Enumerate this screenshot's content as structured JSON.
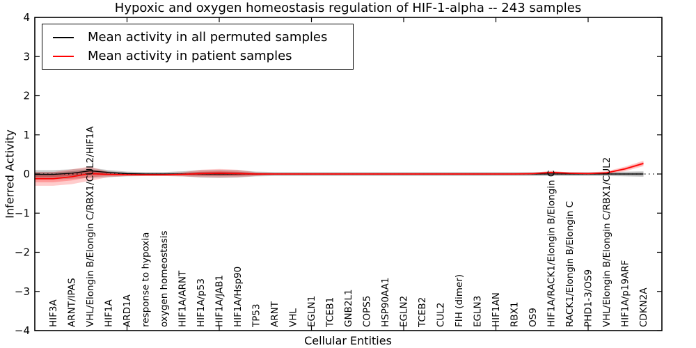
{
  "chart_data": {
    "type": "line",
    "title": "Hypoxic and oxygen homeostasis regulation of HIF-1-alpha -- 243 samples",
    "xlabel": "Cellular Entities",
    "ylabel": "Inferred Activity",
    "ylim": [
      -4,
      4
    ],
    "ytick_labels": [
      "−4",
      "−3",
      "−2",
      "−1",
      "0",
      "1",
      "2",
      "3",
      "4"
    ],
    "grid": false,
    "legend_position": "upper left",
    "background": "#ffffff",
    "zero_line": {
      "style": "dotted",
      "color": "#000000",
      "y": 0
    },
    "categories": [
      "HIF3A",
      "ARNT/IPAS",
      "VHL/Elongin B/Elongin C/RBX1/CUL2/HIF1A",
      "HIF1A",
      "ARD1A",
      "response to hypoxia",
      "oxygen homeostasis",
      "HIF1A/ARNT",
      "HIF1A/p53",
      "HIF1A/JAB1",
      "HIF1A/Hsp90",
      "TP53",
      "ARNT",
      "VHL",
      "EGLN1",
      "TCEB1",
      "GNB2L1",
      "COPS5",
      "HSP90AA1",
      "EGLN2",
      "TCEB2",
      "CUL2",
      "FIH (dimer)",
      "EGLN3",
      "HIF1AN",
      "RBX1",
      "OS9",
      "HIF1A/RACK1/Elongin B/Elongin C",
      "RACK1/Elongin B/Elongin C",
      "PHD1-3/OS9",
      "VHL/Elongin B/Elongin C/RBX1/CUL2",
      "HIF1A/p19ARF",
      "CDKN2A"
    ],
    "series": [
      {
        "name": "Mean activity in all permuted samples",
        "color": "#000000",
        "line_width": 1.3,
        "values": [
          -0.01,
          0.02,
          0.08,
          0.04,
          0.01,
          0,
          0,
          0,
          0,
          0,
          0,
          0,
          0,
          0,
          0,
          0,
          0,
          0,
          0,
          0,
          0,
          0,
          0,
          0,
          0,
          0,
          0,
          0,
          0,
          0,
          0,
          0,
          0
        ],
        "band_upper": [
          0.1,
          0.12,
          0.16,
          0.1,
          0.06,
          0.05,
          0.05,
          0.07,
          0.1,
          0.11,
          0.1,
          0.06,
          0.05,
          0.05,
          0.05,
          0.05,
          0.05,
          0.05,
          0.05,
          0.05,
          0.05,
          0.05,
          0.05,
          0.05,
          0.05,
          0.05,
          0.05,
          0.06,
          0.05,
          0.05,
          0.05,
          0.06,
          0.07
        ],
        "band_lower": [
          -0.14,
          -0.12,
          -0.1,
          -0.08,
          -0.06,
          -0.05,
          -0.05,
          -0.06,
          -0.09,
          -0.1,
          -0.09,
          -0.06,
          -0.05,
          -0.05,
          -0.05,
          -0.05,
          -0.05,
          -0.05,
          -0.05,
          -0.05,
          -0.05,
          -0.05,
          -0.05,
          -0.05,
          -0.05,
          -0.05,
          -0.05,
          -0.05,
          -0.05,
          -0.05,
          -0.05,
          -0.06,
          -0.07
        ]
      },
      {
        "name": "Mean activity in patient samples",
        "color": "#ff0000",
        "line_width": 1.7,
        "values": [
          -0.12,
          -0.07,
          0.01,
          -0.01,
          -0.02,
          -0.02,
          -0.02,
          -0.01,
          0.01,
          0.02,
          0.01,
          0,
          0,
          0,
          0,
          0,
          0,
          0,
          0,
          0,
          0,
          0,
          0,
          0,
          0,
          0,
          0.01,
          0.04,
          0.02,
          0.01,
          0.03,
          0.13,
          0.27
        ],
        "band_upper": [
          0.05,
          0.12,
          0.19,
          0.05,
          0.01,
          0.01,
          0.01,
          0.04,
          0.11,
          0.13,
          0.11,
          0.04,
          0.02,
          0.02,
          0.02,
          0.02,
          0.02,
          0.02,
          0.02,
          0.02,
          0.02,
          0.02,
          0.02,
          0.02,
          0.02,
          0.02,
          0.03,
          0.08,
          0.04,
          0.04,
          0.07,
          0.19,
          0.34
        ],
        "band_lower": [
          -0.3,
          -0.26,
          -0.17,
          -0.08,
          -0.05,
          -0.05,
          -0.05,
          -0.06,
          -0.08,
          -0.09,
          -0.08,
          -0.05,
          -0.02,
          -0.02,
          -0.02,
          -0.02,
          -0.02,
          -0.02,
          -0.02,
          -0.02,
          -0.02,
          -0.02,
          -0.02,
          -0.02,
          -0.02,
          -0.02,
          -0.02,
          0.0,
          0.0,
          -0.01,
          0.0,
          0.07,
          0.2
        ]
      }
    ]
  }
}
